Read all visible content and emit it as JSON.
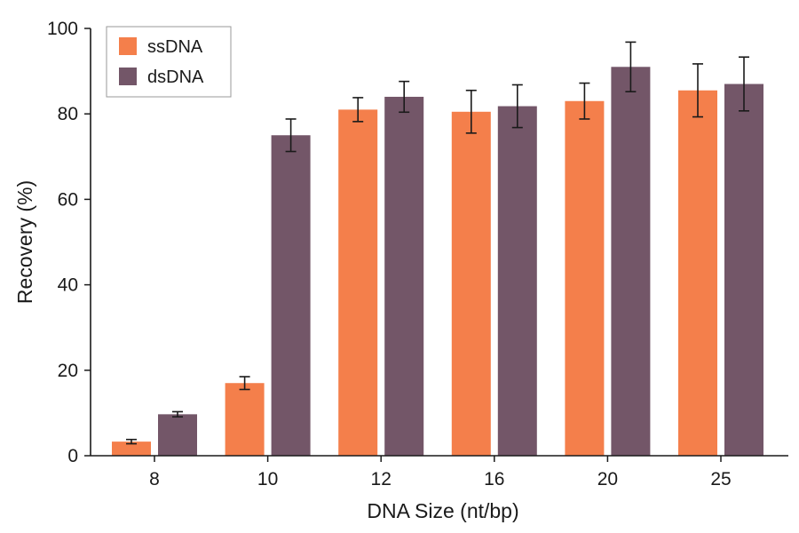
{
  "chart_data": {
    "type": "bar",
    "title": "",
    "xlabel": "DNA Size (nt/bp)",
    "ylabel": "Recovery (%)",
    "categories": [
      "8",
      "10",
      "12",
      "16",
      "20",
      "25"
    ],
    "ylim": [
      0,
      100
    ],
    "yticks": [
      0,
      20,
      40,
      60,
      80,
      100
    ],
    "grid": false,
    "legend_position": "top-left",
    "series": [
      {
        "name": "ssDNA",
        "color": "#F47F4B",
        "values": [
          3.3,
          17.0,
          81.0,
          80.5,
          83.0,
          85.5
        ],
        "errors": [
          0.5,
          1.5,
          2.8,
          5.0,
          4.2,
          6.2
        ]
      },
      {
        "name": "dsDNA",
        "color": "#735668",
        "values": [
          9.7,
          75.0,
          84.0,
          81.8,
          91.0,
          87.0
        ],
        "errors": [
          0.6,
          3.8,
          3.6,
          5.0,
          5.8,
          6.3
        ]
      }
    ]
  }
}
